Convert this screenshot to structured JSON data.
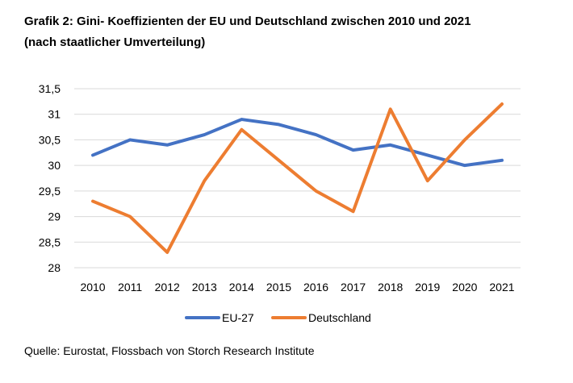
{
  "title_line1": "Grafik 2: Gini- Koeffizienten der EU und Deutschland zwischen 2010 und 2021",
  "title_line2": "(nach staatlicher Umverteilung)",
  "source": "Quelle: Eurostat, Flossbach von Storch Research Institute",
  "colors": {
    "eu": "#4472C4",
    "de": "#ED7D31",
    "grid": "#D9D9D9"
  },
  "chart_data": {
    "type": "line",
    "title": "Grafik 2: Gini- Koeffizienten der EU und Deutschland zwischen 2010 und 2021",
    "subtitle": "(nach staatlicher Umverteilung)",
    "xlabel": "",
    "ylabel": "",
    "x": [
      "2010",
      "2011",
      "2012",
      "2013",
      "2014",
      "2015",
      "2016",
      "2017",
      "2018",
      "2019",
      "2020",
      "2021"
    ],
    "ylim": [
      28,
      31.5
    ],
    "yticks": [
      28,
      28.5,
      29,
      29.5,
      30,
      30.5,
      31,
      31.5
    ],
    "ytick_labels": [
      "28",
      "28,5",
      "29",
      "29,5",
      "30",
      "30,5",
      "31",
      "31,5"
    ],
    "grid": "horizontal",
    "legend_position": "bottom",
    "series": [
      {
        "name": "EU-27",
        "color": "#4472C4",
        "values": [
          30.2,
          30.5,
          30.4,
          30.6,
          30.9,
          30.8,
          30.6,
          30.3,
          30.4,
          30.2,
          30.0,
          30.1
        ]
      },
      {
        "name": "Deutschland",
        "color": "#ED7D31",
        "values": [
          29.3,
          29.0,
          28.3,
          29.7,
          30.7,
          30.1,
          29.5,
          29.1,
          31.1,
          29.7,
          30.5,
          31.2
        ]
      }
    ]
  }
}
